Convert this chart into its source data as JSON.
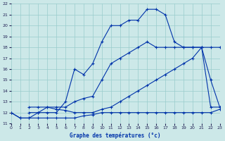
{
  "title": "Graphe des températures (°c)",
  "bg": "#cce8e8",
  "grid_color": "#99cccc",
  "line_color": "#0033aa",
  "xlim": [
    0,
    23
  ],
  "ylim": [
    11,
    22
  ],
  "xticks": [
    0,
    1,
    2,
    3,
    4,
    5,
    6,
    7,
    8,
    9,
    10,
    11,
    12,
    13,
    14,
    15,
    16,
    17,
    18,
    19,
    20,
    21,
    22,
    23
  ],
  "yticks": [
    11,
    12,
    13,
    14,
    15,
    16,
    17,
    18,
    19,
    20,
    21,
    22
  ],
  "series": [
    {
      "x": [
        0,
        1,
        2,
        3,
        4,
        5,
        6,
        7,
        8,
        9,
        10,
        11,
        12,
        13,
        14,
        15,
        16,
        17,
        18,
        19,
        20,
        21,
        22,
        23
      ],
      "y": [
        12,
        11.5,
        11.5,
        11.5,
        11.5,
        11.5,
        11.5,
        11.5,
        11.7,
        11.8,
        12,
        12,
        12,
        12,
        12,
        12,
        12,
        12,
        12,
        12,
        12,
        12,
        12,
        12.3
      ]
    },
    {
      "x": [
        0,
        1,
        2,
        3,
        4,
        5,
        6,
        7,
        8,
        9,
        10,
        11,
        12,
        13,
        14,
        15,
        16,
        17,
        18,
        19,
        20,
        21,
        22,
        23
      ],
      "y": [
        12,
        11.5,
        11.5,
        12,
        12.5,
        12.3,
        12.2,
        12,
        12,
        12,
        12.3,
        12.5,
        13,
        13.5,
        14,
        14.5,
        15,
        15.5,
        16,
        16.5,
        17,
        18,
        15,
        12.5
      ]
    },
    {
      "x": [
        2,
        3,
        4,
        5,
        6,
        7,
        8,
        9,
        10,
        11,
        12,
        13,
        14,
        15,
        16,
        17,
        18,
        19,
        20,
        21,
        22,
        23
      ],
      "y": [
        12.5,
        12.5,
        12.5,
        12.5,
        12.5,
        13,
        13.3,
        13.5,
        15,
        16.5,
        17,
        17.5,
        18,
        18.5,
        18,
        18,
        18,
        18,
        18,
        18,
        18,
        18
      ]
    },
    {
      "x": [
        2,
        3,
        4,
        5,
        6,
        7,
        8,
        9,
        10,
        11,
        12,
        13,
        14,
        15,
        16,
        17,
        18,
        19,
        20,
        21,
        22,
        23
      ],
      "y": [
        12,
        12,
        12,
        12,
        13,
        16,
        15.5,
        16.5,
        18.5,
        20,
        20,
        20.5,
        20.5,
        21.5,
        21.5,
        21,
        18.5,
        18,
        18,
        18,
        12.5,
        12.5
      ]
    }
  ]
}
